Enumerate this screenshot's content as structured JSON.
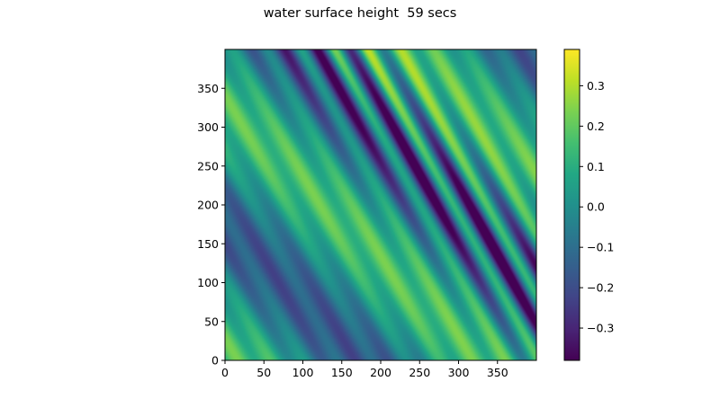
{
  "chart_data": {
    "type": "heatmap",
    "title": "water surface height  59 secs",
    "xlabel": "",
    "ylabel": "",
    "xlim": [
      0,
      400
    ],
    "ylim": [
      0,
      400
    ],
    "xticks": [
      0,
      50,
      100,
      150,
      200,
      250,
      300,
      350
    ],
    "yticks": [
      0,
      50,
      100,
      150,
      200,
      250,
      300,
      350
    ],
    "colorbar": {
      "range": [
        -0.38,
        0.39
      ],
      "ticks": [
        -0.3,
        -0.2,
        -0.1,
        0.0,
        0.1,
        0.2,
        0.3
      ],
      "tick_labels": [
        "−0.3",
        "−0.2",
        "−0.1",
        "0.0",
        "0.1",
        "0.2",
        "0.3"
      ],
      "colormap": "viridis",
      "position": "right"
    },
    "grid": false
  },
  "colors": {
    "viridis_low": "#440154",
    "viridis_mid": "#21918c",
    "viridis_high": "#fde725"
  }
}
